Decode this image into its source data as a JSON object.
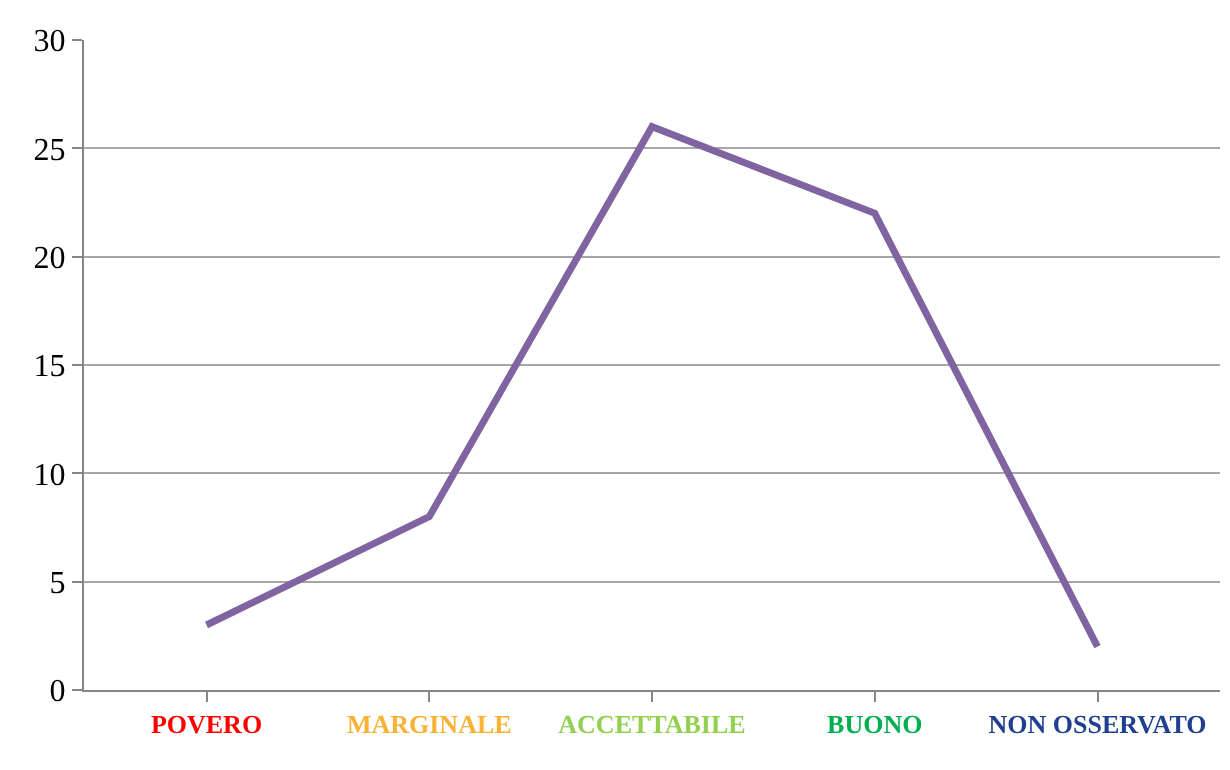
{
  "chart_data": {
    "type": "line",
    "categories": [
      "POVERO",
      "MARGINALE",
      "ACCETTABILE",
      "BUONO",
      "NON OSSERVATO"
    ],
    "colors": [
      "#ff0000",
      "#f9b233",
      "#92d050",
      "#00b050",
      "#1f3f8f"
    ],
    "series": [
      {
        "color": "#8064a2",
        "values": [
          3,
          8,
          26,
          22,
          2
        ]
      }
    ],
    "ylim": [
      0,
      30
    ],
    "yticks": [
      0,
      5,
      10,
      15,
      20,
      25,
      30
    ],
    "grid": "y",
    "legend": false,
    "marker": "none",
    "line_style": "solid"
  }
}
